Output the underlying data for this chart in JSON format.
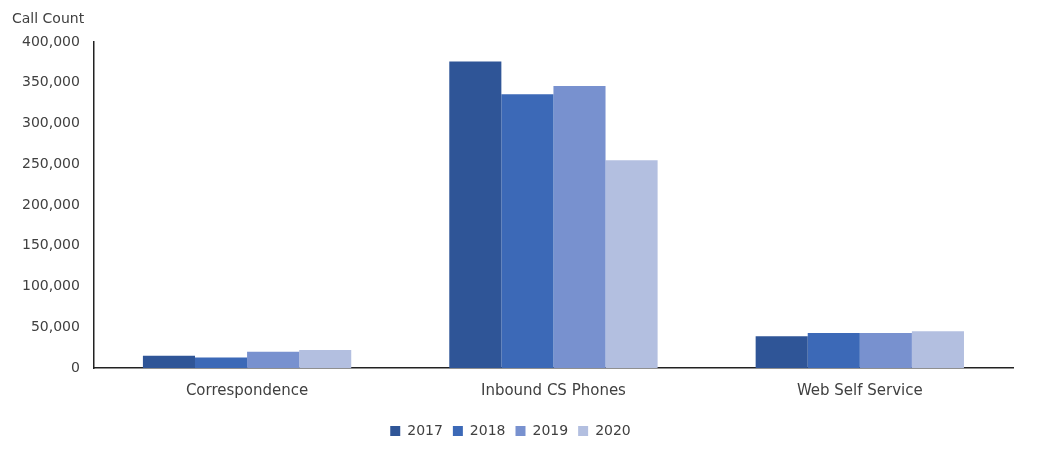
{
  "chart_data": {
    "type": "bar",
    "ylabel": "Call Count",
    "categories": [
      "Correspondence",
      "Inbound CS Phones",
      "Web Self Service"
    ],
    "series": [
      {
        "name": "2017",
        "color": "#2f5597",
        "values": [
          15000,
          376000,
          39000
        ]
      },
      {
        "name": "2018",
        "color": "#3c69b7",
        "values": [
          13000,
          336000,
          43000
        ]
      },
      {
        "name": "2019",
        "color": "#7891cf",
        "values": [
          20000,
          346000,
          43000
        ]
      },
      {
        "name": "2020",
        "color": "#b3bfe0",
        "values": [
          22000,
          255000,
          45000
        ]
      }
    ],
    "ylim": [
      0,
      400000
    ],
    "yticks": [
      0,
      {
        "value": 50000,
        "label": "50,000"
      },
      {
        "value": 100000,
        "label": "100,000"
      },
      {
        "value": 150000,
        "label": "150,000"
      },
      {
        "value": 200000,
        "label": "200,000"
      },
      {
        "value": 250000,
        "label": "250,000"
      },
      {
        "value": 300000,
        "label": "300,000"
      },
      {
        "value": 350000,
        "label": "350,000"
      },
      {
        "value": 400000,
        "label": "400,000"
      }
    ],
    "grid": false,
    "legend": "bottom"
  }
}
